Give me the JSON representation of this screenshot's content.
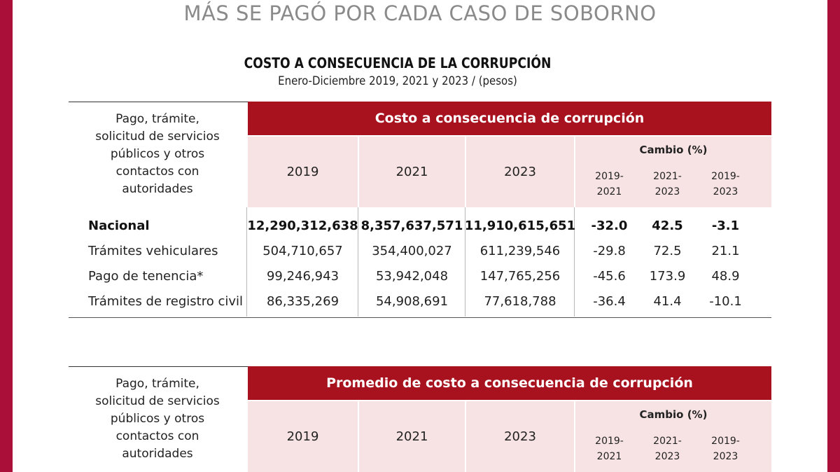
{
  "headline": "MÁS SE PAGÓ POR CADA CASO DE SOBORNO",
  "title": "COSTO A CONSECUENCIA DE LA CORRUPCIÓN",
  "subtitle": "Enero-Diciembre 2019, 2021 y 2023 /  (pesos)",
  "colors": {
    "frame": "#a90f38",
    "header_bar": "#a8121f",
    "header_fill": "#f7e3e3"
  },
  "table1": {
    "concept_header": "Pago, trámite,\nsolicitud de servicios\npúblicos y otros\ncontactos con\nautoridades",
    "group_header": "Costo a consecuencia de corrupción",
    "years": [
      "2019",
      "2021",
      "2023"
    ],
    "change_header": "Cambio (%)",
    "change_periods": [
      "2019-\n2021",
      "2021-\n2023",
      "2019-\n2023"
    ],
    "rows": [
      {
        "label": "Nacional",
        "v2019": "12,290,312,638",
        "v2021": "8,357,637,571",
        "v2023": "11,910,615,651",
        "c1": "-32.0",
        "c2": "42.5",
        "c3": "-3.1"
      },
      {
        "label": "Trámites vehiculares",
        "v2019": "504,710,657",
        "v2021": "354,400,027",
        "v2023": "611,239,546",
        "c1": "-29.8",
        "c2": "72.5",
        "c3": "21.1"
      },
      {
        "label": "Pago de tenencia*",
        "v2019": "99,246,943",
        "v2021": "53,942,048",
        "v2023": "147,765,256",
        "c1": "-45.6",
        "c2": "173.9",
        "c3": "48.9"
      },
      {
        "label": "Trámites de registro civil",
        "v2019": "86,335,269",
        "v2021": "54,908,691",
        "v2023": "77,618,788",
        "c1": "-36.4",
        "c2": "41.4",
        "c3": "-10.1"
      }
    ]
  },
  "table2": {
    "concept_header": "Pago, trámite,\nsolicitud de servicios\npúblicos y otros\ncontactos con\nautoridades",
    "group_header": "Promedio de costo a consecuencia de corrupción",
    "years": [
      "2019",
      "2021",
      "2023"
    ],
    "change_header": "Cambio (%)",
    "change_periods": [
      "2019-\n2021",
      "2021-\n2023",
      "2019-\n2023"
    ]
  }
}
